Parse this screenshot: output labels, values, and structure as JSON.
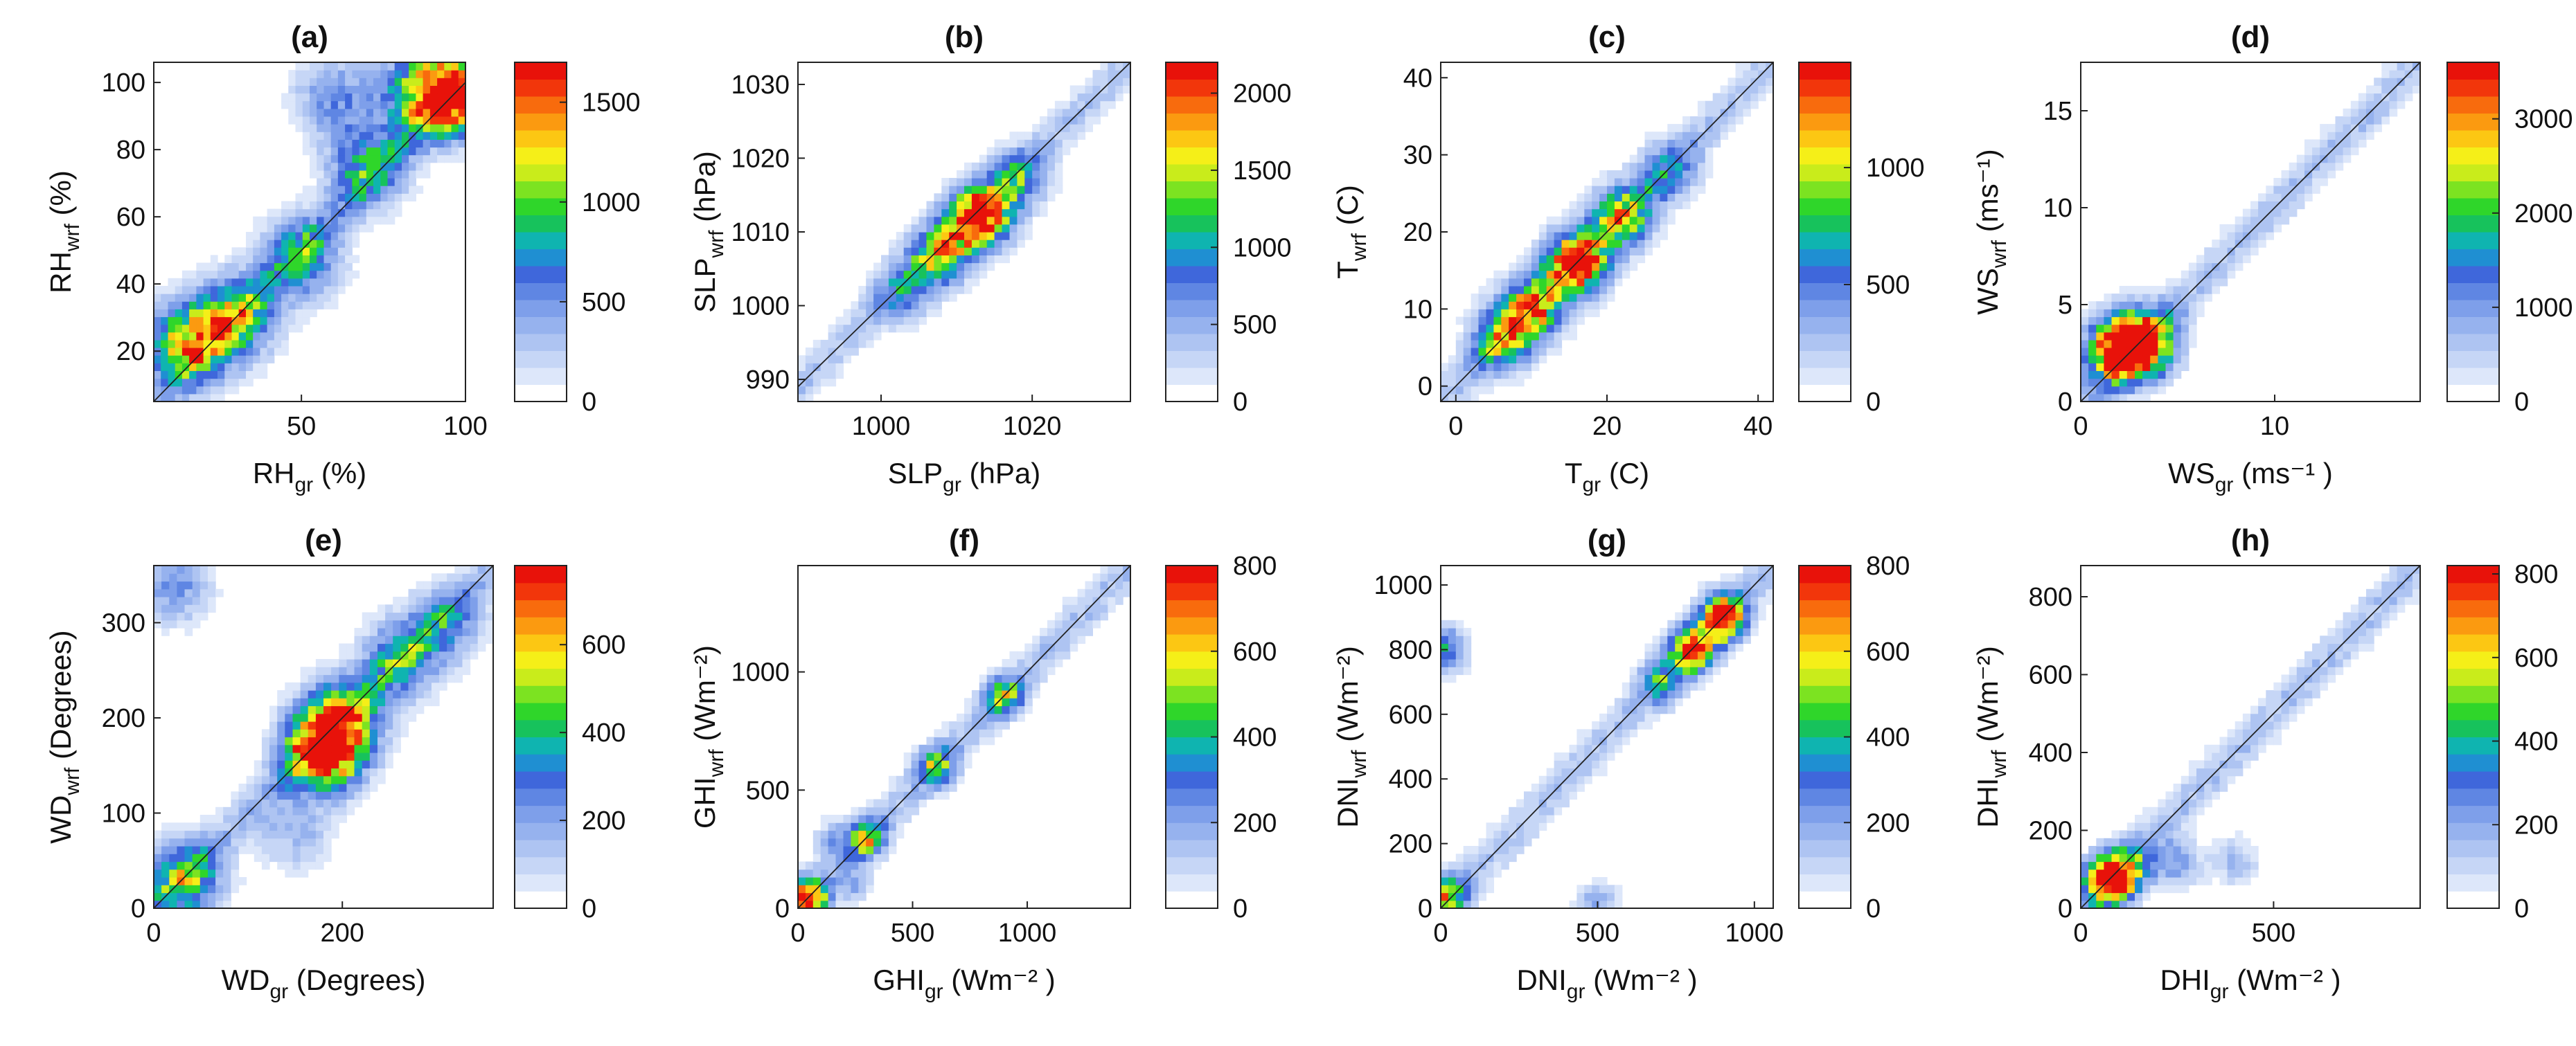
{
  "figure": {
    "description_free": true
  },
  "colorscale": [
    "#ffffff",
    "#dde7fa",
    "#c6d6f6",
    "#aec4f2",
    "#96b2ee",
    "#7e9fea",
    "#5f86e3",
    "#3f67db",
    "#1f8fd2",
    "#0fb4b0",
    "#17c25c",
    "#2fd62a",
    "#7ce321",
    "#c9ec1b",
    "#f5ef18",
    "#fcc713",
    "#fb9a10",
    "#f86b0d",
    "#f2360b",
    "#e8120a"
  ],
  "chart_data": [
    {
      "id": "a",
      "type": "heatmap",
      "title": "(a)",
      "xlabel": {
        "main": "RH",
        "sub": "gr",
        "unit": " (%)"
      },
      "ylabel": {
        "main": "RH",
        "sub": "wrf",
        "unit": " (%)"
      },
      "xlim": [
        5,
        100
      ],
      "ylim": [
        5,
        106
      ],
      "xticks": [
        50,
        100
      ],
      "yticks": [
        20,
        40,
        60,
        80,
        100
      ],
      "xtick_labels": [
        "50",
        "100"
      ],
      "ytick_labels": [
        "20",
        "40",
        "60",
        "80",
        "100"
      ],
      "colorbar": {
        "max": 1700,
        "ticks": [
          0,
          500,
          1000,
          1500
        ],
        "labels": [
          "0",
          "500",
          "1000",
          "1500"
        ]
      },
      "density": {
        "centers": [
          [
            15,
            22,
            0.7
          ],
          [
            30,
            30,
            0.55
          ],
          [
            50,
            48,
            0.45
          ],
          [
            70,
            75,
            0.45
          ],
          [
            95,
            97,
            1.0
          ],
          [
            85,
            97,
            0.35
          ],
          [
            60,
            96,
            0.3
          ]
        ],
        "spread": 12,
        "peak": 1700,
        "seed": 11,
        "line_len": 1.0
      }
    },
    {
      "id": "b",
      "type": "heatmap",
      "title": "(b)",
      "xlabel": {
        "main": "SLP",
        "sub": "gr",
        "unit": " (hPa)"
      },
      "ylabel": {
        "main": "SLP",
        "sub": "wrf",
        "unit": " (hPa)"
      },
      "xlim": [
        989,
        1033
      ],
      "ylim": [
        987,
        1033
      ],
      "xticks": [
        1000,
        1020
      ],
      "yticks": [
        990,
        1000,
        1010,
        1020,
        1030
      ],
      "xtick_labels": [
        "1000",
        "1020"
      ],
      "ytick_labels": [
        "990",
        "1000",
        "1010",
        "1020",
        "1030"
      ],
      "colorbar": {
        "max": 2200,
        "ticks": [
          0,
          500,
          1000,
          1500,
          2000
        ],
        "labels": [
          "0",
          "500",
          "1000",
          "1500",
          "2000"
        ]
      },
      "density": {
        "centers": [
          [
            1013,
            1012,
            1.0
          ],
          [
            1008,
            1007,
            0.6
          ],
          [
            1018,
            1017,
            0.4
          ],
          [
            1003,
            1002,
            0.3
          ]
        ],
        "spread": 4,
        "peak": 2200,
        "seed": 7,
        "line_len": 1.0
      }
    },
    {
      "id": "c",
      "type": "heatmap",
      "title": "(c)",
      "xlabel": {
        "main": "T",
        "sub": "gr",
        "unit": " (C)"
      },
      "ylabel": {
        "main": "T",
        "sub": "wrf",
        "unit": " (C)"
      },
      "xlim": [
        -2,
        42
      ],
      "ylim": [
        -2,
        42
      ],
      "xticks": [
        0,
        20,
        40
      ],
      "yticks": [
        0,
        10,
        20,
        30,
        40
      ],
      "xtick_labels": [
        "0",
        "20",
        "40"
      ],
      "ytick_labels": [
        "0",
        "10",
        "20",
        "30",
        "40"
      ],
      "colorbar": {
        "max": 1450,
        "ticks": [
          0,
          500,
          1000
        ],
        "labels": [
          "0",
          "500",
          "1000"
        ]
      },
      "density": {
        "centers": [
          [
            16,
            16,
            1.0
          ],
          [
            10,
            10,
            0.7
          ],
          [
            22,
            22,
            0.6
          ],
          [
            6,
            6,
            0.5
          ],
          [
            28,
            28,
            0.3
          ]
        ],
        "spread": 4,
        "peak": 1450,
        "seed": 5,
        "line_len": 1.0
      }
    },
    {
      "id": "d",
      "type": "heatmap",
      "title": "(d)",
      "xlabel": {
        "main": "WS",
        "sub": "gr",
        "unit": " (ms⁻¹ )"
      },
      "ylabel": {
        "main": "WS",
        "sub": "wrf",
        "unit": " (ms⁻¹)"
      },
      "xlim": [
        0,
        17.5
      ],
      "ylim": [
        0,
        17.5
      ],
      "xticks": [
        0,
        10
      ],
      "yticks": [
        0,
        5,
        10,
        15
      ],
      "xtick_labels": [
        "0",
        "10"
      ],
      "ytick_labels": [
        "0",
        "5",
        "10",
        "15"
      ],
      "colorbar": {
        "max": 3600,
        "ticks": [
          0,
          1000,
          2000,
          3000
        ],
        "labels": [
          "0",
          "1000",
          "2000",
          "3000"
        ]
      },
      "density": {
        "centers": [
          [
            2.5,
            2.8,
            1.0
          ],
          [
            3.5,
            3.2,
            0.5
          ],
          [
            1.5,
            2.5,
            0.35
          ]
        ],
        "spread": 1.6,
        "peak": 3600,
        "seed": 3,
        "line_len": 1.0
      }
    },
    {
      "id": "e",
      "type": "heatmap",
      "title": "(e)",
      "xlabel": {
        "main": "WD",
        "sub": "gr",
        "unit": " (Degrees)"
      },
      "ylabel": {
        "main": "WD",
        "sub": "wrf",
        "unit": " (Degrees)"
      },
      "xlim": [
        0,
        360
      ],
      "ylim": [
        0,
        360
      ],
      "xticks": [
        0,
        200
      ],
      "yticks": [
        0,
        100,
        200,
        300
      ],
      "xtick_labels": [
        "0",
        "200"
      ],
      "ytick_labels": [
        "0",
        "100",
        "200",
        "300"
      ],
      "colorbar": {
        "max": 780,
        "ticks": [
          0,
          200,
          400,
          600
        ],
        "labels": [
          "0",
          "200",
          "400",
          "600"
        ]
      },
      "density": {
        "centers": [
          [
            180,
            165,
            1.0
          ],
          [
            200,
            200,
            0.6
          ],
          [
            30,
            30,
            0.55
          ],
          [
            260,
            260,
            0.4
          ],
          [
            20,
            340,
            0.3
          ],
          [
            310,
            300,
            0.3
          ],
          [
            150,
            80,
            0.2
          ]
        ],
        "spread": 40,
        "peak": 780,
        "seed": 17,
        "line_len": 1.0
      }
    },
    {
      "id": "f",
      "type": "heatmap",
      "title": "(f)",
      "xlabel": {
        "main": "GHI",
        "sub": "gr",
        "unit": " (Wm⁻² )"
      },
      "ylabel": {
        "main": "GHI",
        "sub": "wrf",
        "unit": " (Wm⁻²)"
      },
      "xlim": [
        0,
        1450
      ],
      "ylim": [
        0,
        1450
      ],
      "xticks": [
        0,
        500,
        1000
      ],
      "yticks": [
        0,
        500,
        1000
      ],
      "xtick_labels": [
        "0",
        "500",
        "1000"
      ],
      "ytick_labels": [
        "0",
        "500",
        "1000"
      ],
      "colorbar": {
        "max": 800,
        "ticks": [
          0,
          200,
          400,
          600,
          800
        ],
        "labels": [
          "0",
          "200",
          "400",
          "600",
          "800"
        ]
      },
      "density": {
        "centers": [
          [
            40,
            40,
            1.0
          ],
          [
            300,
            300,
            0.6
          ],
          [
            600,
            600,
            0.55
          ],
          [
            900,
            900,
            0.55
          ],
          [
            150,
            300,
            0.2
          ],
          [
            250,
            100,
            0.2
          ]
        ],
        "spread": 80,
        "peak": 800,
        "seed": 23,
        "line_len": 1.0
      }
    },
    {
      "id": "g",
      "type": "heatmap",
      "title": "(g)",
      "xlabel": {
        "main": "DNI",
        "sub": "gr",
        "unit": " (Wm⁻² )"
      },
      "ylabel": {
        "main": "DNI",
        "sub": "wrf",
        "unit": " (Wm⁻²)"
      },
      "xlim": [
        0,
        1060
      ],
      "ylim": [
        0,
        1060
      ],
      "xticks": [
        0,
        500,
        1000
      ],
      "yticks": [
        0,
        200,
        400,
        600,
        800,
        1000
      ],
      "xtick_labels": [
        "0",
        "500",
        "1000"
      ],
      "ytick_labels": [
        "0",
        "200",
        "400",
        "600",
        "800",
        "1000"
      ],
      "colorbar": {
        "max": 800,
        "ticks": [
          0,
          200,
          400,
          600,
          800
        ],
        "labels": [
          "0",
          "200",
          "400",
          "600",
          "800"
        ]
      },
      "density": {
        "centers": [
          [
            900,
            900,
            1.0
          ],
          [
            800,
            800,
            0.8
          ],
          [
            700,
            700,
            0.35
          ],
          [
            10,
            800,
            0.45
          ],
          [
            10,
            30,
            0.6
          ],
          [
            500,
            10,
            0.25
          ]
        ],
        "spread": 70,
        "peak": 800,
        "seed": 29,
        "line_len": 1.0
      }
    },
    {
      "id": "h",
      "type": "heatmap",
      "title": "(h)",
      "xlabel": {
        "main": "DHI",
        "sub": "gr",
        "unit": " (Wm⁻² )"
      },
      "ylabel": {
        "main": "DHI",
        "sub": "wrf",
        "unit": " (Wm⁻²)"
      },
      "xlim": [
        0,
        880
      ],
      "ylim": [
        0,
        880
      ],
      "xticks": [
        0,
        500
      ],
      "yticks": [
        0,
        200,
        400,
        600,
        800
      ],
      "xtick_labels": [
        "0",
        "500"
      ],
      "ytick_labels": [
        "0",
        "200",
        "400",
        "600",
        "800"
      ],
      "colorbar": {
        "max": 820,
        "ticks": [
          0,
          200,
          400,
          600,
          800
        ],
        "labels": [
          "0",
          "200",
          "400",
          "600",
          "800"
        ]
      },
      "density": {
        "centers": [
          [
            70,
            70,
            1.0
          ],
          [
            120,
            100,
            0.5
          ],
          [
            250,
            120,
            0.3
          ],
          [
            400,
            120,
            0.2
          ]
        ],
        "spread": 60,
        "peak": 820,
        "seed": 31,
        "line_len": 1.0
      }
    }
  ]
}
